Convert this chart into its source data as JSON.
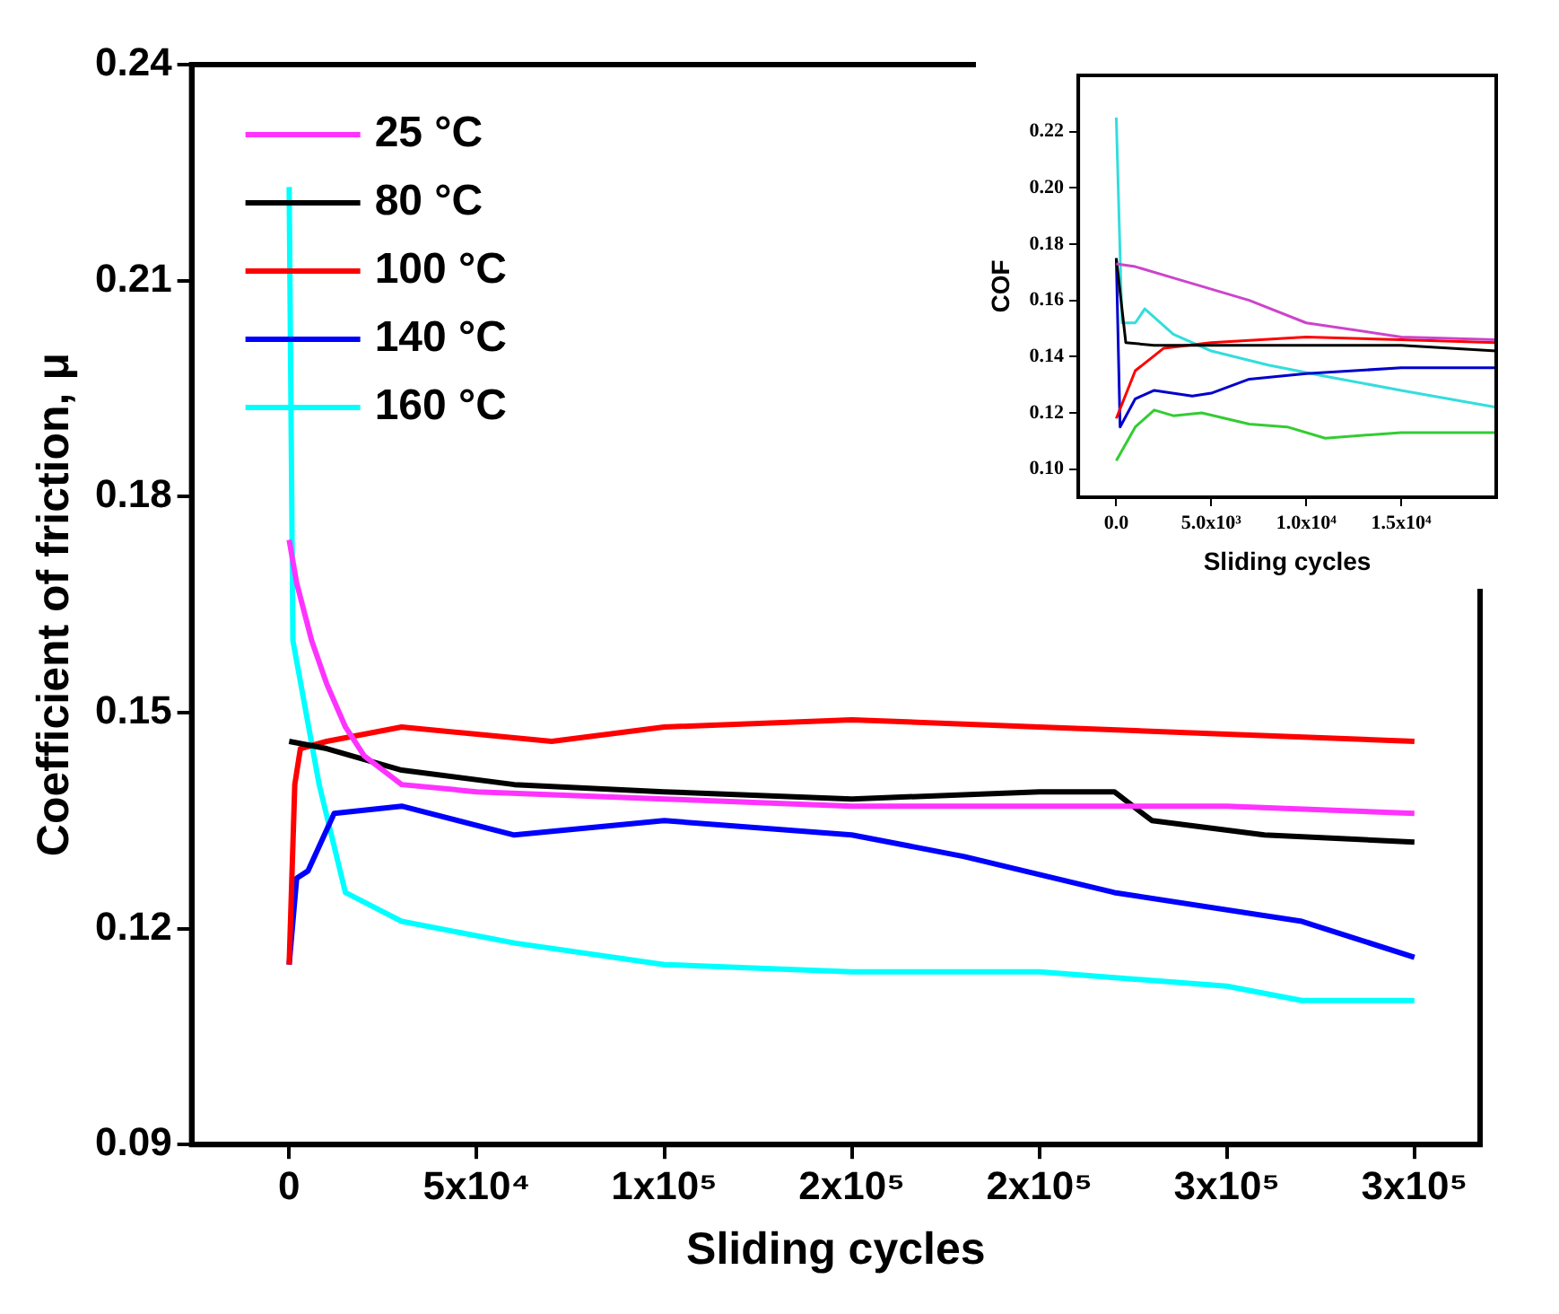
{
  "chart_data": [
    {
      "type": "line",
      "xlabel": "Sliding cycles",
      "ylabel": "Coefficient of friction, μ",
      "legend": "top left",
      "grid": false,
      "xlim": [
        -26000,
        317500
      ],
      "ylim": [
        0.09,
        0.24
      ],
      "xticks": [
        0,
        {
          "value": 50000,
          "label": "5x10⁴"
        },
        {
          "value": 100000,
          "label": "1x10⁵"
        },
        {
          "value": 150000,
          "label": "2x10⁵"
        },
        {
          "value": 200000,
          "label": "2x10⁵"
        },
        {
          "value": 250000,
          "label": "3x10⁵"
        },
        {
          "value": 300000,
          "label": "3x10⁵"
        }
      ],
      "yticks": [
        0.09,
        0.12,
        0.15,
        0.18,
        0.21,
        0.24
      ],
      "series": [
        {
          "name": "25 °C",
          "color": "#ff33ff",
          "x": [
            0,
            2000,
            6000,
            10000,
            15000,
            20000,
            30000,
            50000,
            100000,
            150000,
            200000,
            250000,
            300000
          ],
          "values": [
            0.174,
            0.168,
            0.16,
            0.154,
            0.148,
            0.144,
            0.14,
            0.139,
            0.138,
            0.137,
            0.137,
            0.137,
            0.136
          ]
        },
        {
          "name": "80 °C",
          "color": "#000000",
          "x": [
            0,
            10000,
            30000,
            60000,
            100000,
            150000,
            200000,
            220000,
            230000,
            260000,
            300000
          ],
          "values": [
            0.146,
            0.145,
            0.142,
            0.14,
            0.139,
            0.138,
            0.139,
            0.139,
            0.135,
            0.133,
            0.132
          ]
        },
        {
          "name": "100 °C",
          "color": "#ff0000",
          "x": [
            0,
            1500,
            3000,
            10000,
            30000,
            70000,
            100000,
            150000,
            200000,
            250000,
            300000
          ],
          "values": [
            0.115,
            0.14,
            0.145,
            0.146,
            0.148,
            0.146,
            0.148,
            0.149,
            0.148,
            0.147,
            0.146
          ]
        },
        {
          "name": "140 °C",
          "color": "#0000ff",
          "x": [
            0,
            2000,
            5000,
            12000,
            30000,
            60000,
            100000,
            150000,
            180000,
            220000,
            270000,
            300000
          ],
          "values": [
            0.115,
            0.127,
            0.128,
            0.136,
            0.137,
            0.133,
            0.135,
            0.133,
            0.13,
            0.125,
            0.121,
            0.116
          ]
        },
        {
          "name": "160 °C",
          "color": "#00ffff",
          "x": [
            0,
            1000,
            8000,
            15000,
            30000,
            60000,
            100000,
            150000,
            200000,
            250000,
            270000,
            300000
          ],
          "values": [
            0.223,
            0.16,
            0.14,
            0.125,
            0.121,
            0.118,
            0.115,
            0.114,
            0.114,
            0.112,
            0.11,
            0.11
          ]
        }
      ]
    },
    {
      "type": "line",
      "xlabel": "Sliding cycles",
      "ylabel": "COF",
      "grid": false,
      "xlim": [
        -2000,
        20000
      ],
      "ylim": [
        0.09,
        0.24
      ],
      "xticks": [
        {
          "value": 0,
          "label": "0.0"
        },
        {
          "value": 5000,
          "label": "5.0x10³"
        },
        {
          "value": 10000,
          "label": "1.0x10⁴"
        },
        {
          "value": 15000,
          "label": "1.5x10⁴"
        }
      ],
      "yticks": [
        {
          "value": 0.1,
          "label": "0.10"
        },
        0.12,
        0.14,
        0.16,
        0.18,
        {
          "value": 0.2,
          "label": "0.20"
        },
        0.22
      ],
      "series": [
        {
          "color": "#cc44cc",
          "x": [
            0,
            1000,
            3000,
            7000,
            10000,
            15000,
            20000
          ],
          "values": [
            0.173,
            0.172,
            0.168,
            0.16,
            0.152,
            0.147,
            0.146
          ]
        },
        {
          "color": "#000000",
          "x": [
            0,
            500,
            2000,
            8000,
            15000,
            20000
          ],
          "values": [
            0.175,
            0.145,
            0.144,
            0.144,
            0.144,
            0.142
          ]
        },
        {
          "color": "#ff0000",
          "x": [
            0,
            1000,
            2500,
            5000,
            10000,
            15000,
            20000
          ],
          "values": [
            0.118,
            0.135,
            0.143,
            0.145,
            0.147,
            0.146,
            0.145
          ]
        },
        {
          "color": "#0000cc",
          "x": [
            0,
            200,
            1000,
            2000,
            4000,
            5000,
            7000,
            10000,
            15000,
            20000
          ],
          "values": [
            0.175,
            0.115,
            0.125,
            0.128,
            0.126,
            0.127,
            0.132,
            0.134,
            0.136,
            0.136
          ]
        },
        {
          "color": "#33dddd",
          "x": [
            0,
            300,
            1000,
            1500,
            3000,
            5000,
            8000,
            11000,
            15000,
            20000
          ],
          "values": [
            0.225,
            0.152,
            0.152,
            0.157,
            0.148,
            0.142,
            0.137,
            0.133,
            0.128,
            0.122
          ]
        },
        {
          "color": "#33cc33",
          "x": [
            0,
            1000,
            2000,
            3000,
            4500,
            7000,
            9000,
            11000,
            15000,
            20000
          ],
          "values": [
            0.103,
            0.115,
            0.121,
            0.119,
            0.12,
            0.116,
            0.115,
            0.111,
            0.113,
            0.113
          ]
        }
      ]
    }
  ]
}
